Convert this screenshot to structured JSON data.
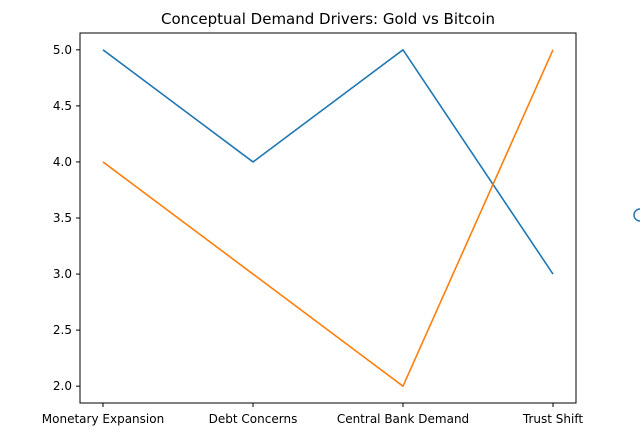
{
  "chart_data": {
    "type": "line",
    "title": "Conceptual Demand Drivers: Gold vs Bitcoin",
    "xlabel": "",
    "ylabel": "",
    "categories": [
      "Monetary Expansion",
      "Debt Concerns",
      "Central Bank Demand",
      "Trust Shift"
    ],
    "ylim": [
      1.85,
      5.15
    ],
    "yticks": [
      2.0,
      2.5,
      3.0,
      3.5,
      4.0,
      4.5,
      5.0
    ],
    "ytick_labels": [
      "2.0",
      "2.5",
      "3.0",
      "3.5",
      "4.0",
      "4.5",
      "5.0"
    ],
    "grid": false,
    "series": [
      {
        "color": "#1f77b4",
        "values": [
          5,
          4,
          5,
          3
        ]
      },
      {
        "color": "#ff7f0e",
        "values": [
          4,
          3,
          2,
          5
        ]
      }
    ]
  },
  "legend_marker_color": "#1f77b4"
}
